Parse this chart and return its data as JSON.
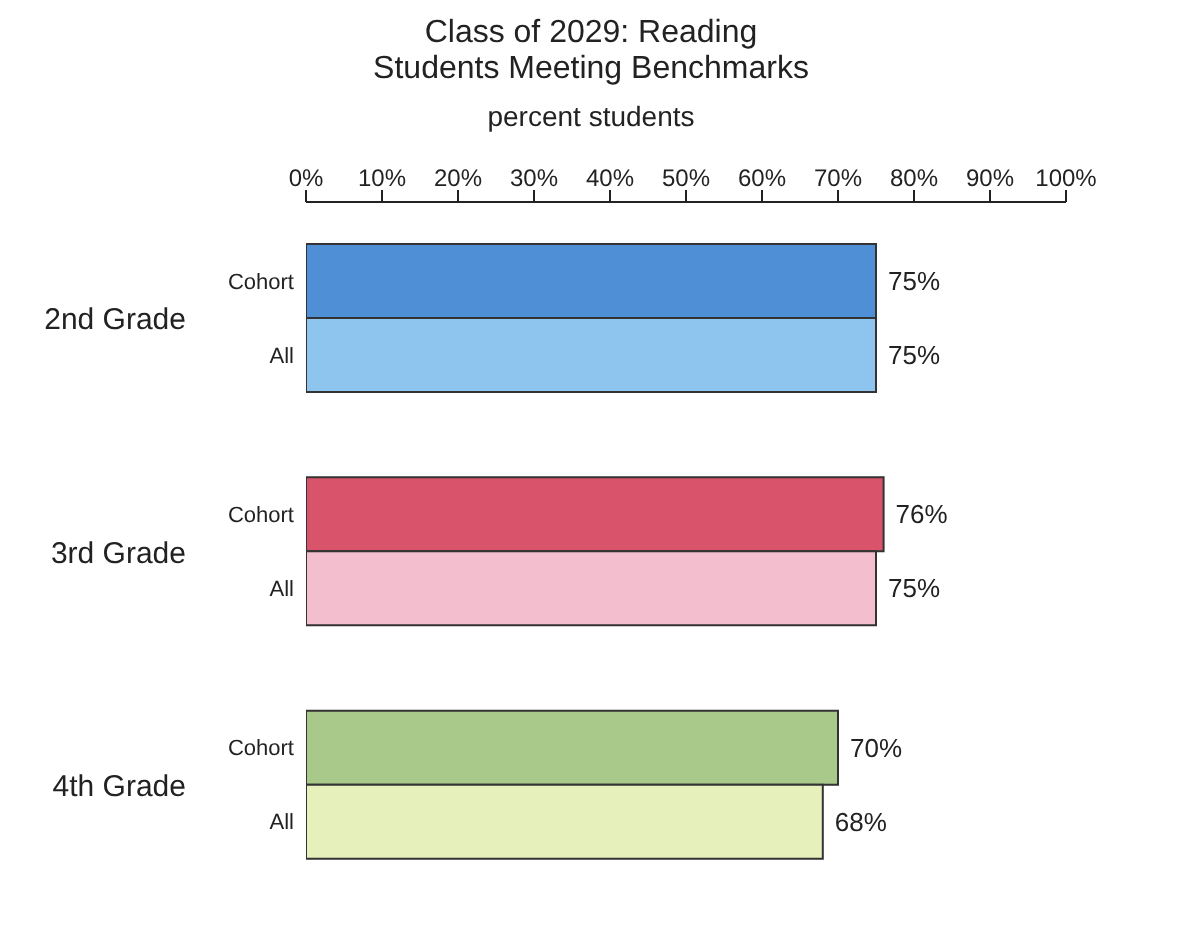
{
  "chart_data": {
    "type": "bar",
    "orientation": "horizontal",
    "title": "Class of 2029: Reading",
    "subtitle": "Students Meeting Benchmarks",
    "xlabel": "percent students",
    "categories": [
      "2nd Grade",
      "3rd Grade",
      "4th Grade"
    ],
    "series": [
      {
        "name": "Cohort",
        "colors": [
          "#4f8fd6",
          "#d9536a",
          "#a9c98a"
        ],
        "values": [
          75,
          76,
          70
        ],
        "value_labels": [
          "75%",
          "76%",
          "70%"
        ]
      },
      {
        "name": "All",
        "colors": [
          "#8ec5ee",
          "#f3bfce",
          "#e6f0bb"
        ],
        "values": [
          75,
          75,
          68
        ],
        "value_labels": [
          "75%",
          "75%",
          "68%"
        ]
      }
    ],
    "xlim": [
      0,
      100
    ],
    "xticks": [
      {
        "value": 0,
        "label": "0%"
      },
      {
        "value": 10,
        "label": "10%"
      },
      {
        "value": 20,
        "label": "20%"
      },
      {
        "value": 30,
        "label": "30%"
      },
      {
        "value": 40,
        "label": "40%"
      },
      {
        "value": 50,
        "label": "50%"
      },
      {
        "value": 60,
        "label": "60%"
      },
      {
        "value": 70,
        "label": "70%"
      },
      {
        "value": 80,
        "label": "80%"
      },
      {
        "value": 90,
        "label": "90%"
      },
      {
        "value": 100,
        "label": "100%"
      }
    ],
    "grid": false,
    "legend": false
  }
}
